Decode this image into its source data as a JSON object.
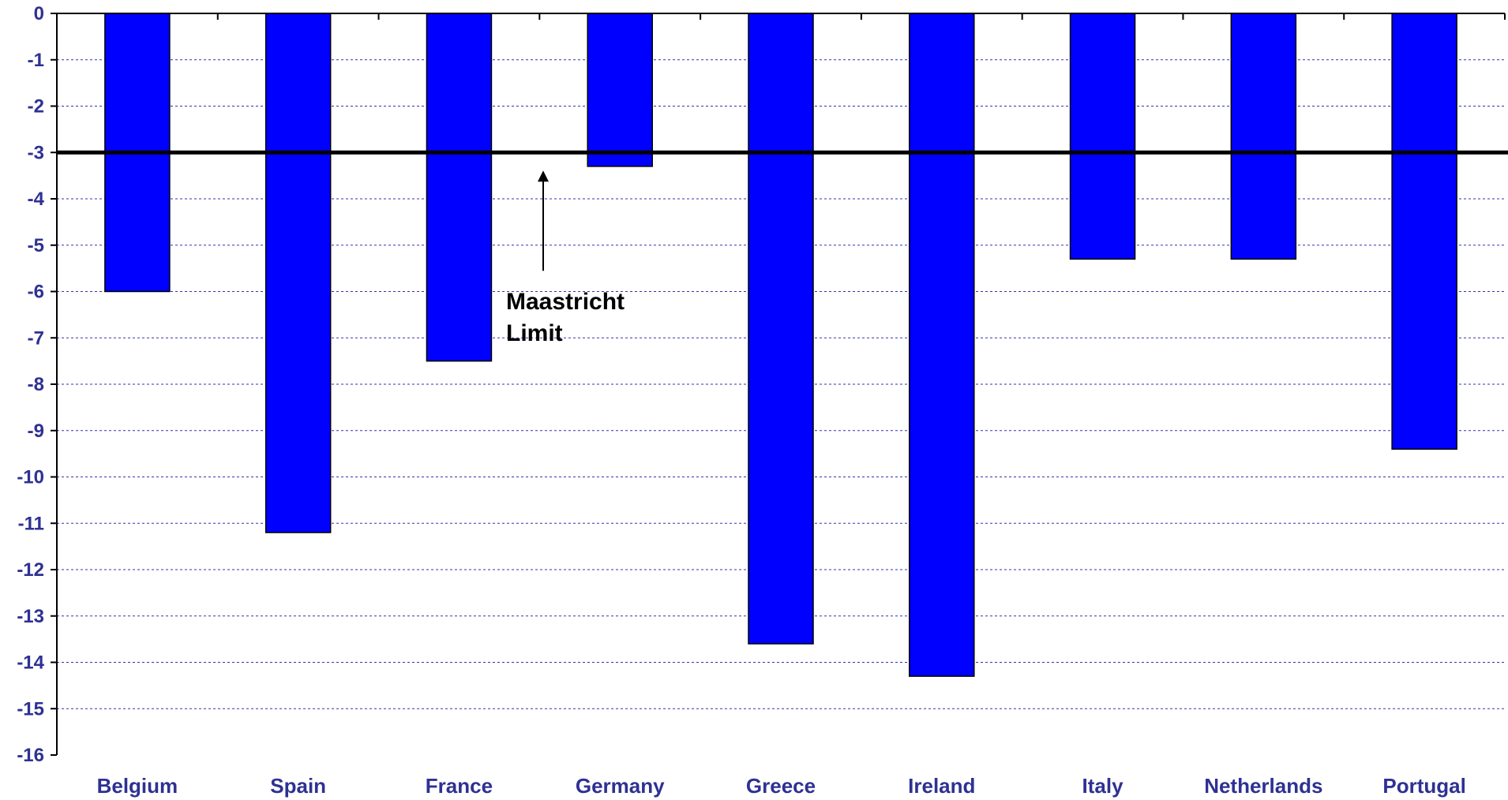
{
  "chart_data": {
    "type": "bar",
    "categories": [
      "Belgium",
      "Spain",
      "France",
      "Germany",
      "Greece",
      "Ireland",
      "Italy",
      "Netherlands",
      "Portugal"
    ],
    "values": [
      -6.0,
      -11.2,
      -7.5,
      -3.3,
      -13.6,
      -14.3,
      -5.3,
      -5.3,
      -9.4
    ],
    "ylim": [
      -16,
      0
    ],
    "yticks": [
      "0",
      "-1",
      "-2",
      "-3",
      "-4",
      "-5",
      "-6",
      "-7",
      "-8",
      "-9",
      "-10",
      "-11",
      "-12",
      "-13",
      "-14",
      "-15",
      "-16"
    ],
    "grid": true,
    "reference_line": {
      "value": -3
    },
    "annotation": {
      "line1": "Maastricht",
      "line2": "Limit"
    },
    "colors": {
      "bar": "#0000ff",
      "bar_outline": "#000000",
      "grid": "#3333aa",
      "label": "#2e3192",
      "reference_line": "#000000"
    }
  }
}
